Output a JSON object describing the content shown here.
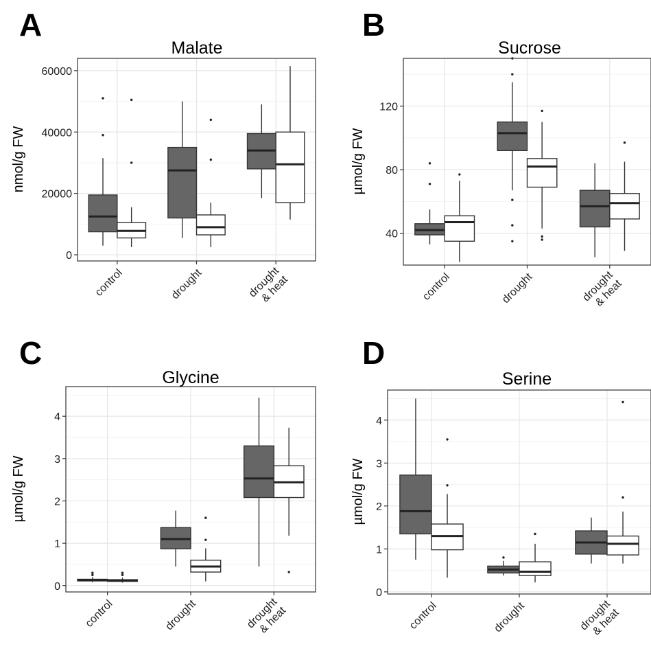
{
  "chart_data": [
    {
      "panel": "A",
      "type": "box",
      "title": "Malate",
      "ylabel": "nmol/g FW",
      "ylim": [
        -2000,
        64000
      ],
      "yticks": [
        0,
        20000,
        40000,
        60000
      ],
      "yticklabels": [
        "0",
        "20000",
        "40000",
        "60000"
      ],
      "categories": [
        "control",
        "drought",
        "drought\n& heat"
      ],
      "series": [
        {
          "fill": "#666666",
          "boxes": [
            {
              "whisker_low": 3000,
              "q1": 7500,
              "median": 12500,
              "q3": 19500,
              "whisker_high": 31500,
              "outliers": [
                39000,
                51000
              ]
            },
            {
              "whisker_low": 5500,
              "q1": 12000,
              "median": 27500,
              "q3": 35000,
              "whisker_high": 50000,
              "outliers": []
            },
            {
              "whisker_low": 18500,
              "q1": 28000,
              "median": 34000,
              "q3": 39500,
              "whisker_high": 49000,
              "outliers": []
            }
          ]
        },
        {
          "fill": "#ffffff",
          "boxes": [
            {
              "whisker_low": 2500,
              "q1": 5500,
              "median": 7800,
              "q3": 10500,
              "whisker_high": 15500,
              "outliers": [
                30000,
                50500
              ]
            },
            {
              "whisker_low": 2500,
              "q1": 6500,
              "median": 9000,
              "q3": 13000,
              "whisker_high": 17000,
              "outliers": [
                31000,
                44000
              ]
            },
            {
              "whisker_low": 11500,
              "q1": 17000,
              "median": 29500,
              "q3": 40000,
              "whisker_high": 61500,
              "outliers": []
            }
          ]
        }
      ]
    },
    {
      "panel": "B",
      "type": "box",
      "title": "Sucrose",
      "ylabel": "µmol/g FW",
      "ylim": [
        20,
        150
      ],
      "yticks": [
        40,
        80,
        120
      ],
      "yticklabels": [
        "40",
        "80",
        "120"
      ],
      "categories": [
        "control",
        "drought",
        "drought\n& heat"
      ],
      "series": [
        {
          "fill": "#666666",
          "boxes": [
            {
              "whisker_low": 33,
              "q1": 39,
              "median": 42,
              "q3": 46,
              "whisker_high": 55,
              "outliers": [
                71,
                84
              ]
            },
            {
              "whisker_low": 67,
              "q1": 92,
              "median": 103,
              "q3": 110,
              "whisker_high": 135,
              "outliers": [
                35,
                45,
                61,
                140,
                150
              ]
            },
            {
              "whisker_low": 25,
              "q1": 44,
              "median": 57,
              "q3": 67,
              "whisker_high": 84,
              "outliers": []
            }
          ]
        },
        {
          "fill": "#ffffff",
          "boxes": [
            {
              "whisker_low": 22,
              "q1": 35,
              "median": 47,
              "q3": 51,
              "whisker_high": 73,
              "outliers": [
                77
              ]
            },
            {
              "whisker_low": 43,
              "q1": 69,
              "median": 82,
              "q3": 87,
              "whisker_high": 110,
              "outliers": [
                36,
                38,
                117
              ]
            },
            {
              "whisker_low": 29,
              "q1": 49,
              "median": 59,
              "q3": 65,
              "whisker_high": 85,
              "outliers": [
                97
              ]
            }
          ]
        }
      ]
    },
    {
      "panel": "C",
      "type": "box",
      "title": "Glycine",
      "ylabel": "µmol/g FW",
      "ylim": [
        -0.15,
        4.7
      ],
      "yticks": [
        0,
        1,
        2,
        3,
        4
      ],
      "yticklabels": [
        "0",
        "1",
        "2",
        "3",
        "4"
      ],
      "categories": [
        "control",
        "drought",
        "drought\n& heat"
      ],
      "series": [
        {
          "fill": "#666666",
          "boxes": [
            {
              "whisker_low": 0.08,
              "q1": 0.11,
              "median": 0.13,
              "q3": 0.15,
              "whisker_high": 0.2,
              "outliers": [
                0.25,
                0.3
              ]
            },
            {
              "whisker_low": 0.45,
              "q1": 0.87,
              "median": 1.1,
              "q3": 1.37,
              "whisker_high": 1.77,
              "outliers": []
            },
            {
              "whisker_low": 0.45,
              "q1": 2.08,
              "median": 2.53,
              "q3": 3.3,
              "whisker_high": 4.44,
              "outliers": []
            }
          ]
        },
        {
          "fill": "#ffffff",
          "boxes": [
            {
              "whisker_low": 0.07,
              "q1": 0.1,
              "median": 0.12,
              "q3": 0.14,
              "whisker_high": 0.19,
              "outliers": [
                0.25,
                0.3
              ]
            },
            {
              "whisker_low": 0.1,
              "q1": 0.32,
              "median": 0.45,
              "q3": 0.6,
              "whisker_high": 0.88,
              "outliers": [
                1.08,
                1.6
              ]
            },
            {
              "whisker_low": 1.18,
              "q1": 2.08,
              "median": 2.44,
              "q3": 2.83,
              "whisker_high": 3.73,
              "outliers": [
                0.32
              ]
            }
          ]
        }
      ]
    },
    {
      "panel": "D",
      "type": "box",
      "title": "Serine",
      "ylabel": "µmol/g FW",
      "ylim": [
        -0.05,
        4.7
      ],
      "yticks": [
        0,
        1,
        2,
        3,
        4
      ],
      "yticklabels": [
        "0",
        "1",
        "2",
        "3",
        "4"
      ],
      "categories": [
        "control",
        "drought",
        "drought\n& heat"
      ],
      "series": [
        {
          "fill": "#666666",
          "boxes": [
            {
              "whisker_low": 0.75,
              "q1": 1.35,
              "median": 1.88,
              "q3": 2.72,
              "whisker_high": 4.5,
              "outliers": []
            },
            {
              "whisker_low": 0.38,
              "q1": 0.44,
              "median": 0.52,
              "q3": 0.6,
              "whisker_high": 0.72,
              "outliers": [
                0.8
              ]
            },
            {
              "whisker_low": 0.66,
              "q1": 0.88,
              "median": 1.15,
              "q3": 1.42,
              "whisker_high": 1.73,
              "outliers": []
            }
          ]
        },
        {
          "fill": "#ffffff",
          "boxes": [
            {
              "whisker_low": 0.33,
              "q1": 0.98,
              "median": 1.3,
              "q3": 1.58,
              "whisker_high": 2.28,
              "outliers": [
                2.48,
                3.55
              ]
            },
            {
              "whisker_low": 0.22,
              "q1": 0.38,
              "median": 0.47,
              "q3": 0.7,
              "whisker_high": 1.12,
              "outliers": [
                1.35
              ]
            },
            {
              "whisker_low": 0.66,
              "q1": 0.86,
              "median": 1.12,
              "q3": 1.3,
              "whisker_high": 1.87,
              "outliers": [
                2.2,
                4.42
              ]
            }
          ]
        }
      ]
    }
  ],
  "colors": {
    "panel_background": "#ffffff",
    "grid": "#e5e5e5",
    "box_dark": "#666666",
    "box_light": "#ffffff",
    "stroke": "#333333"
  }
}
